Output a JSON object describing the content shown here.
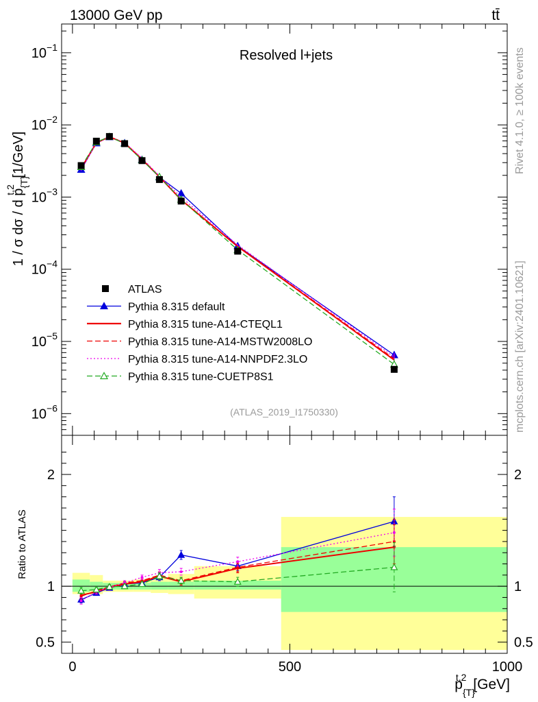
{
  "chart_data": {
    "type": "line",
    "header_left": "13000 GeV pp",
    "header_right": "tt̄",
    "title": "Resolved l+jets",
    "analysis_id": "(ATLAS_2019_I1750330)",
    "side_text_top": "Rivet 4.1.0, ≥ 100k events",
    "side_text_bottom": "mcplots.cern.ch [arXiv:2401.10621]",
    "ylabel": "1 / σ dσ / d p_{T}^{t,2} [1/GeV]",
    "ylabel_parts": {
      "main": "1 / σ dσ / d p",
      "sup": "t,2",
      "sub": "{T}",
      "unit": " [1/GeV]"
    },
    "xlabel": "p_{T}^{t,2} [GeV]",
    "xlabel_parts": {
      "main": "p",
      "sup": "t,2",
      "sub": "{T}",
      "unit": " [GeV]"
    },
    "ratio_ylabel": "Ratio to ATLAS",
    "xlim": [
      -25,
      1000
    ],
    "ylim": [
      5e-07,
      0.25
    ],
    "ratio_ylim": [
      0.4,
      2.35
    ],
    "x_ticks": [
      0,
      500,
      1000
    ],
    "y_ticks": [
      {
        "value": 1e-06,
        "label": "10",
        "exp": "−6"
      },
      {
        "value": 1e-05,
        "label": "10",
        "exp": "−5"
      },
      {
        "value": 0.0001,
        "label": "10",
        "exp": "−4"
      },
      {
        "value": 0.001,
        "label": "10",
        "exp": "−3"
      },
      {
        "value": 0.01,
        "label": "10",
        "exp": "−2"
      },
      {
        "value": 0.1,
        "label": "10",
        "exp": "−1"
      }
    ],
    "ratio_ticks": [
      {
        "value": 0.5,
        "label": "0.5"
      },
      {
        "value": 1,
        "label": "1"
      },
      {
        "value": 2,
        "label": "2"
      }
    ],
    "bins": [
      {
        "lo": 0,
        "hi": 40
      },
      {
        "lo": 40,
        "hi": 70
      },
      {
        "lo": 70,
        "hi": 100
      },
      {
        "lo": 100,
        "hi": 140
      },
      {
        "lo": 140,
        "hi": 180
      },
      {
        "lo": 180,
        "hi": 220
      },
      {
        "lo": 220,
        "hi": 280
      },
      {
        "lo": 280,
        "hi": 480
      },
      {
        "lo": 480,
        "hi": 1000
      }
    ],
    "x": [
      20,
      55,
      85,
      120,
      160,
      200,
      250,
      380,
      740
    ],
    "data": {
      "name": "ATLAS",
      "values": [
        0.00273,
        0.00595,
        0.0069,
        0.0055,
        0.0032,
        0.00175,
        0.00088,
        0.000178,
        4.1e-06
      ],
      "band_inner": [
        [
          0.95,
          1.06
        ],
        [
          0.96,
          1.04
        ],
        [
          0.97,
          1.03
        ],
        [
          0.97,
          1.03
        ],
        [
          0.97,
          1.03
        ],
        [
          0.97,
          1.04
        ],
        [
          0.97,
          1.04
        ],
        [
          0.97,
          1.05
        ],
        [
          0.77,
          1.35
        ]
      ],
      "band_outer": [
        [
          0.93,
          1.12
        ],
        [
          0.93,
          1.1
        ],
        [
          0.95,
          1.05
        ],
        [
          0.95,
          1.05
        ],
        [
          0.95,
          1.06
        ],
        [
          0.94,
          1.08
        ],
        [
          0.93,
          1.11
        ],
        [
          0.89,
          1.18
        ],
        [
          0.43,
          1.62
        ]
      ]
    },
    "series": [
      {
        "name": "Pythia 8.315 default",
        "color": "#0000dd",
        "style": "solid",
        "marker": "triangle-filled",
        "ratio": [
          0.88,
          0.94,
          0.985,
          1.02,
          1.03,
          1.08,
          1.28,
          1.18,
          1.58
        ],
        "ratio_err": [
          0.03,
          0.02,
          0.02,
          0.02,
          0.02,
          0.03,
          0.04,
          0.04,
          0.22
        ]
      },
      {
        "name": "Pythia 8.315 tune-A14-CTEQL1",
        "color": "#ee0000",
        "style": "solid",
        "marker": "none",
        "ratio": [
          0.92,
          0.95,
          0.99,
          1.02,
          1.04,
          1.09,
          1.04,
          1.16,
          1.35
        ],
        "ratio_err": [
          0.03,
          0.02,
          0.02,
          0.02,
          0.02,
          0.03,
          0.03,
          0.04,
          0.2
        ]
      },
      {
        "name": "Pythia 8.315 tune-A14-MSTW2008LO",
        "color": "#ee0000",
        "style": "dashed",
        "marker": "none",
        "ratio": [
          0.91,
          0.96,
          0.995,
          1.03,
          1.05,
          1.1,
          1.05,
          1.17,
          1.4
        ],
        "ratio_err": [
          0.03,
          0.02,
          0.02,
          0.02,
          0.02,
          0.03,
          0.03,
          0.04,
          0.2
        ]
      },
      {
        "name": "Pythia 8.315 tune-A14-NNPDF2.3LO",
        "color": "#ee00ee",
        "style": "dotted",
        "marker": "none",
        "ratio": [
          0.87,
          0.95,
          0.99,
          1.03,
          1.08,
          1.12,
          1.13,
          1.22,
          1.48
        ],
        "ratio_err": [
          0.03,
          0.02,
          0.02,
          0.02,
          0.02,
          0.03,
          0.03,
          0.04,
          0.21
        ]
      },
      {
        "name": "Pythia 8.315 tune-CUETP8S1",
        "color": "#22aa22",
        "style": "dashed",
        "marker": "triangle-open",
        "ratio": [
          0.96,
          0.97,
          0.995,
          1.0,
          1.02,
          1.09,
          1.05,
          1.04,
          1.17
        ],
        "ratio_err": [
          0.03,
          0.02,
          0.02,
          0.02,
          0.02,
          0.03,
          0.03,
          0.04,
          0.22
        ]
      }
    ]
  }
}
